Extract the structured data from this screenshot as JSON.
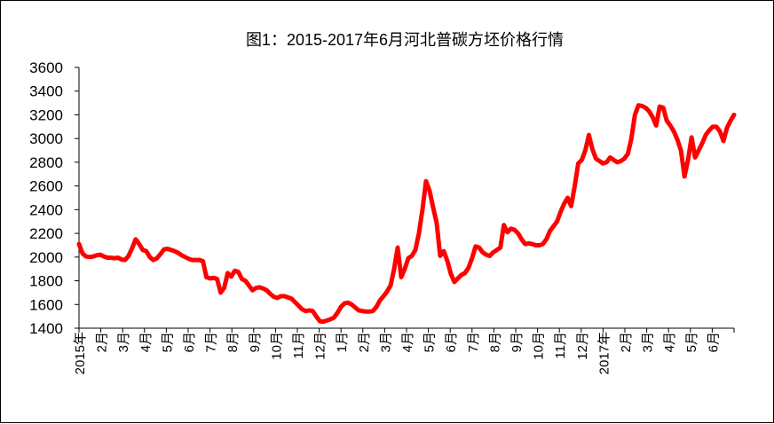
{
  "chart_data": {
    "type": "line",
    "title": "图1：2015-2017年6月河北普碳方坯价格行情",
    "xlabel": "",
    "ylabel": "",
    "ylim": [
      1400,
      3600
    ],
    "yticks": [
      "3600",
      "3400",
      "3200",
      "3000",
      "2800",
      "2600",
      "2400",
      "2200",
      "2000",
      "1800",
      "1600",
      "1400"
    ],
    "xtick_labels": [
      "2015年",
      "2月",
      "3月",
      "4月",
      "5月",
      "6月",
      "7月",
      "8月",
      "9月",
      "10月",
      "11月",
      "12月",
      "1月",
      "2月",
      "3月",
      "4月",
      "5月",
      "6月",
      "7月",
      "8月",
      "9月",
      "10月",
      "11月",
      "12月",
      "2017年",
      "2月",
      "3月",
      "4月",
      "5月",
      "6月"
    ],
    "grid": false,
    "legend": "none",
    "line_color": "#ff0000",
    "series": [
      {
        "values": [
          2110,
          2030,
          2005,
          2000,
          2005,
          2015,
          2020,
          2005,
          1995,
          1995,
          1990,
          1995,
          1980,
          1975,
          2010,
          2075,
          2150,
          2110,
          2060,
          2050,
          2000,
          1975,
          1990,
          2025,
          2065,
          2070,
          2060,
          2050,
          2035,
          2015,
          2000,
          1985,
          1975,
          1975,
          1975,
          1965,
          1830,
          1820,
          1825,
          1815,
          1700,
          1740,
          1865,
          1835,
          1885,
          1875,
          1815,
          1800,
          1760,
          1720,
          1740,
          1745,
          1735,
          1720,
          1690,
          1665,
          1655,
          1670,
          1670,
          1660,
          1650,
          1620,
          1590,
          1560,
          1545,
          1550,
          1545,
          1500,
          1460,
          1455,
          1465,
          1475,
          1490,
          1530,
          1580,
          1610,
          1615,
          1600,
          1575,
          1550,
          1545,
          1540,
          1540,
          1545,
          1580,
          1635,
          1670,
          1710,
          1760,
          1900,
          2080,
          1830,
          1900,
          1990,
          2010,
          2060,
          2200,
          2400,
          2640,
          2560,
          2420,
          2290,
          2010,
          2050,
          1970,
          1860,
          1790,
          1820,
          1850,
          1865,
          1910,
          1990,
          2090,
          2080,
          2040,
          2020,
          2010,
          2040,
          2060,
          2080,
          2270,
          2210,
          2240,
          2230,
          2200,
          2150,
          2110,
          2115,
          2110,
          2100,
          2100,
          2110,
          2150,
          2220,
          2260,
          2300,
          2380,
          2450,
          2500,
          2430,
          2600,
          2790,
          2820,
          2900,
          3030,
          2910,
          2830,
          2810,
          2790,
          2800,
          2840,
          2820,
          2800,
          2810,
          2830,
          2870,
          3000,
          3200,
          3280,
          3275,
          3260,
          3230,
          3180,
          3110,
          3270,
          3260,
          3150,
          3110,
          3060,
          2990,
          2900,
          2680,
          2820,
          3010,
          2840,
          2900,
          2960,
          3030,
          3070,
          3100,
          3100,
          3060,
          2980,
          3090,
          3150,
          3200
        ]
      }
    ]
  }
}
